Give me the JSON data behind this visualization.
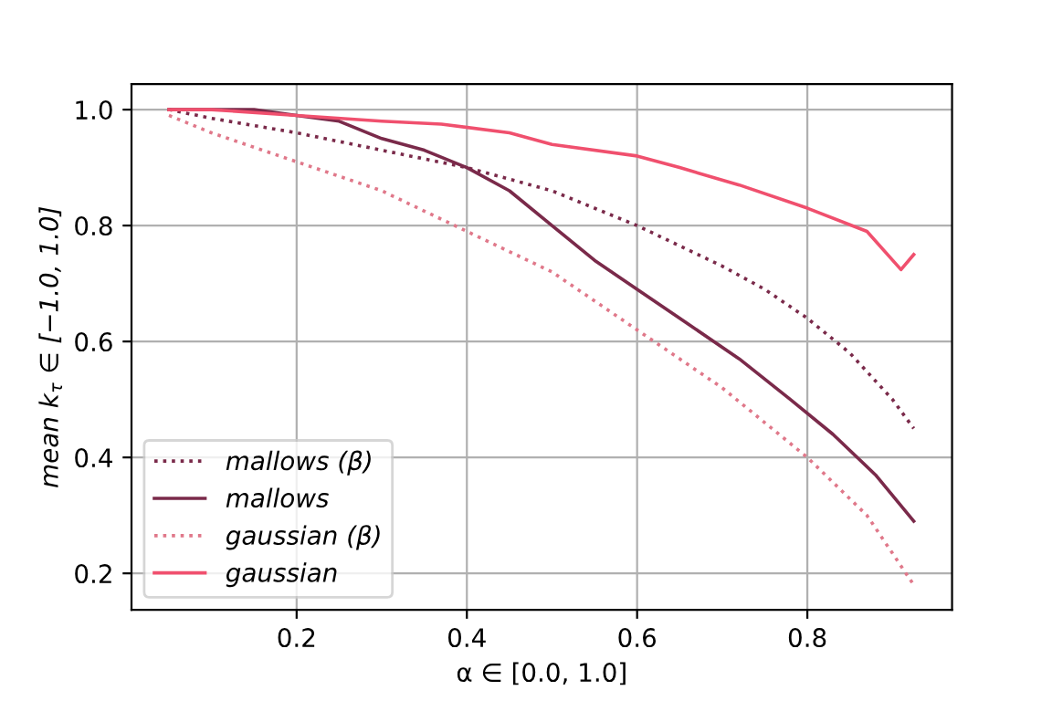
{
  "chart_data": {
    "type": "line",
    "xlabel": "α ∈ [0.0, 1.0]",
    "ylabel": "mean k$_{τ}$ ∈ [−1.0, 1.0]",
    "xlim": [
      0.006,
      0.97
    ],
    "ylim": [
      0.137,
      1.044
    ],
    "xticks": [
      0.2,
      0.4,
      0.6,
      0.8
    ],
    "yticks": [
      0.2,
      0.4,
      0.6,
      0.8,
      {
        "value": 1.0,
        "label": "1.0"
      }
    ],
    "grid": true,
    "legend": "bottom left",
    "series": [
      {
        "name": "mallows (β)",
        "color": "#7a2a4a",
        "line_style": "dotted",
        "x": [
          0.05,
          0.1,
          0.2,
          0.3,
          0.4,
          0.5,
          0.6,
          0.7,
          0.75,
          0.8,
          0.85,
          0.9,
          0.925
        ],
        "values": [
          1.0,
          0.985,
          0.96,
          0.93,
          0.9,
          0.86,
          0.8,
          0.73,
          0.69,
          0.64,
          0.58,
          0.5,
          0.45
        ]
      },
      {
        "name": "mallows",
        "color": "#7a2a4a",
        "line_style": "solid",
        "x": [
          0.05,
          0.1,
          0.15,
          0.2,
          0.25,
          0.3,
          0.35,
          0.4,
          0.45,
          0.5,
          0.55,
          0.6,
          0.66,
          0.72,
          0.78,
          0.83,
          0.88,
          0.925
        ],
        "values": [
          1.0,
          1.0,
          1.0,
          0.99,
          0.98,
          0.95,
          0.93,
          0.9,
          0.86,
          0.8,
          0.74,
          0.69,
          0.63,
          0.57,
          0.5,
          0.44,
          0.37,
          0.29
        ]
      },
      {
        "name": "gaussian (β)",
        "color": "#e0788a",
        "line_style": "dotted",
        "x": [
          0.05,
          0.1,
          0.2,
          0.3,
          0.4,
          0.5,
          0.6,
          0.7,
          0.8,
          0.87,
          0.925
        ],
        "values": [
          0.99,
          0.96,
          0.91,
          0.86,
          0.79,
          0.72,
          0.62,
          0.52,
          0.4,
          0.3,
          0.18
        ]
      },
      {
        "name": "gaussian",
        "color": "#f0506e",
        "line_style": "solid",
        "x": [
          0.05,
          0.1,
          0.2,
          0.3,
          0.37,
          0.45,
          0.5,
          0.6,
          0.65,
          0.72,
          0.8,
          0.87,
          0.91,
          0.925
        ],
        "values": [
          1.0,
          1.0,
          0.99,
          0.98,
          0.975,
          0.96,
          0.94,
          0.92,
          0.9,
          0.87,
          0.83,
          0.79,
          0.724,
          0.75
        ]
      }
    ]
  }
}
